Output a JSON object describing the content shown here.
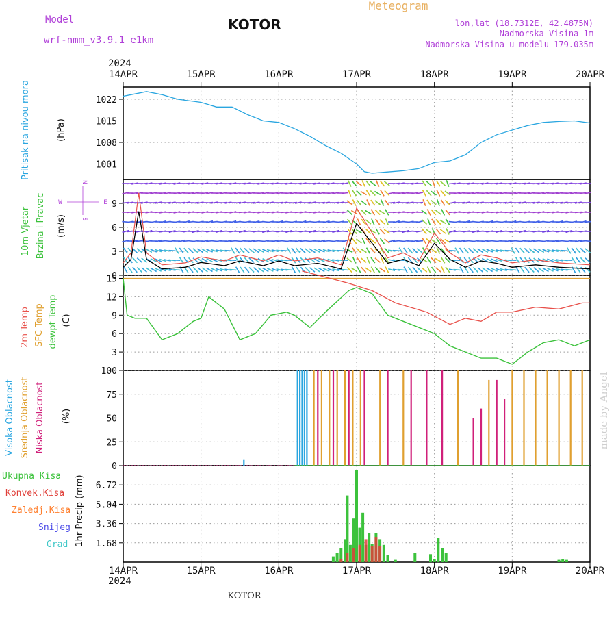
{
  "header": {
    "model_label": "Model",
    "model_name": "wrf-nmm_v3.9.1  e1km",
    "station": "KOTOR",
    "product": "Meteogram",
    "lonlat": "lon,lat (18.7312E, 42.4875N)",
    "elevation": "Nadmorska Visina 1m",
    "model_elevation": "Nadmorska Visina u modelu 179.035m",
    "year": "2024",
    "footer_station": "KOTOR",
    "credit": "made by Angel"
  },
  "colors": {
    "pressure": "#2aa6e0",
    "temp2m": "#e8504a",
    "sfc_temp": "#e0a030",
    "dewpoint": "#3cc23c",
    "label_green": "#3cc23c",
    "label_purple": "#b040d8",
    "high_cloud": "#2aa6e0",
    "mid_cloud": "#e0a030",
    "low_cloud": "#d0207a",
    "total_precip": "#3cc23c",
    "conv_precip": "#e0403a",
    "frozen_precip": "#ff8030",
    "snow": "#5050e8",
    "grad": "#40c8c8"
  },
  "chart_data": [
    {
      "type": "line",
      "title": "",
      "ylabel": [
        "Pritisak na nivou mora",
        "(hPa)"
      ],
      "x_labels": [
        "14APR",
        "15APR",
        "16APR",
        "17APR",
        "18APR",
        "19APR",
        "20APR"
      ],
      "x_unit": "day_index (0=14APR 00, 6=20APR 00)",
      "yticks": [
        1001,
        1008,
        1015,
        1022
      ],
      "ylim": [
        996,
        1026
      ],
      "series": [
        {
          "name": "Pritisak",
          "x": [
            0,
            0.1,
            0.3,
            0.5,
            0.7,
            1.0,
            1.2,
            1.4,
            1.6,
            1.8,
            2.0,
            2.2,
            2.4,
            2.6,
            2.8,
            3.0,
            3.1,
            3.2,
            3.4,
            3.6,
            3.8,
            4.0,
            4.2,
            4.4,
            4.6,
            4.8,
            5.0,
            5.2,
            5.4,
            5.6,
            5.8,
            6.0
          ],
          "values": [
            1023,
            1023.5,
            1024.5,
            1023.5,
            1022,
            1021,
            1019.5,
            1019.5,
            1017,
            1015,
            1014.5,
            1012.5,
            1010,
            1007,
            1004.5,
            1001,
            998.5,
            998,
            998.4,
            998.8,
            999.5,
            1001.5,
            1002,
            1004,
            1008,
            1010.5,
            1012,
            1013.5,
            1014.5,
            1014.8,
            1015,
            1014.3
          ]
        }
      ]
    },
    {
      "type": "line",
      "title": "",
      "ylabel": [
        "10m Vjetar",
        "Brzina i Pravac",
        "(m/s)"
      ],
      "direction_legend": {
        "w": "W",
        "e": "E",
        "n": "N",
        "s": "S"
      },
      "yticks": [
        0,
        3,
        6,
        9
      ],
      "ylim": [
        0,
        12
      ],
      "series": [
        {
          "name": "Brzina",
          "x": [
            0,
            0.1,
            0.2,
            0.3,
            0.5,
            0.8,
            1.0,
            1.3,
            1.5,
            1.8,
            2.0,
            2.2,
            2.5,
            2.8,
            3.0,
            3.2,
            3.4,
            3.6,
            3.8,
            4.0,
            4.2,
            4.4,
            4.6,
            4.8,
            5.0,
            5.3,
            5.6,
            6.0
          ],
          "values": [
            1,
            2,
            8,
            2,
            0.8,
            1,
            1.6,
            1.2,
            1.8,
            1.2,
            1.8,
            1.2,
            1.5,
            0.8,
            6.5,
            4,
            1.5,
            2,
            1.2,
            4,
            2,
            1,
            1.8,
            1.5,
            1,
            1.3,
            1,
            0.8
          ]
        }
      ]
    },
    {
      "type": "line",
      "title": "",
      "ylabel": [
        "2m Temp",
        "SFC Temp",
        "dewpt Temp",
        "(C)"
      ],
      "yticks": [
        3,
        6,
        9,
        12,
        15
      ],
      "ylim": [
        0,
        15.5
      ],
      "series": [
        {
          "name": "2m Temp",
          "x": [
            2.3,
            2.6,
            2.9,
            3.2,
            3.5,
            3.9,
            4.2,
            4.4,
            4.6,
            4.8,
            5.0,
            5.3,
            5.6,
            5.9,
            6.0
          ],
          "values": [
            16.2,
            15.2,
            14.2,
            13,
            11,
            9.5,
            7.5,
            8.5,
            8,
            9.5,
            9.5,
            10.3,
            10,
            11,
            11
          ]
        },
        {
          "name": "SFC Temp",
          "x": [
            0,
            6
          ],
          "values": [
            15,
            15
          ]
        },
        {
          "name": "dewpt Temp",
          "x": [
            0,
            0.05,
            0.15,
            0.3,
            0.5,
            0.7,
            0.8,
            0.9,
            1.0,
            1.1,
            1.3,
            1.5,
            1.7,
            1.9,
            2.1,
            2.2,
            2.4,
            2.6,
            2.9,
            3.0,
            3.2,
            3.4,
            3.6,
            3.8,
            4.0,
            4.2,
            4.4,
            4.6,
            4.8,
            5.0,
            5.2,
            5.4,
            5.6,
            5.8,
            6.0
          ],
          "values": [
            15,
            9,
            8.5,
            8.5,
            5,
            6,
            7,
            8,
            8.5,
            12,
            10,
            5,
            6,
            9,
            9.5,
            9,
            7,
            9.5,
            13,
            13.5,
            12.5,
            9,
            8,
            7,
            6,
            4,
            3,
            2,
            2,
            1,
            3,
            4.5,
            5,
            4,
            5
          ]
        }
      ]
    },
    {
      "type": "bar",
      "title": "",
      "ylabel": [
        "Visoka Oblacnost",
        "Srednja Oblacnost",
        "Niska Oblacnost",
        "(%)"
      ],
      "yticks": [
        0,
        25,
        50,
        75,
        100
      ],
      "ylim": [
        0,
        100
      ],
      "series": [
        {
          "name": "Visoka Oblacnost",
          "x": [
            1.55,
            2.24,
            2.27,
            2.3,
            2.33,
            2.36
          ],
          "values": [
            6,
            100,
            100,
            100,
            100,
            100
          ]
        },
        {
          "name": "Srednja Oblacnost",
          "x": [
            2.45,
            2.55,
            2.65,
            2.75,
            2.85,
            2.95,
            3.05,
            3.3,
            3.6,
            4.3,
            4.5,
            4.7,
            5.0,
            5.15,
            5.3,
            5.45,
            5.6,
            5.75,
            5.9
          ],
          "values": [
            100,
            100,
            100,
            100,
            100,
            100,
            100,
            100,
            100,
            100,
            50,
            90,
            100,
            100,
            100,
            100,
            100,
            100,
            100
          ]
        },
        {
          "name": "Niska Oblacnost",
          "x": [
            2.5,
            2.7,
            2.9,
            3.1,
            3.4,
            3.7,
            3.9,
            4.1,
            4.5,
            4.6,
            4.8,
            4.9
          ],
          "values": [
            100,
            100,
            100,
            100,
            100,
            100,
            100,
            100,
            50,
            60,
            90,
            70
          ]
        }
      ]
    },
    {
      "type": "bar",
      "title": "",
      "ylabel": [
        "1hr Precip (mm)"
      ],
      "legend": [
        "Ukupna Kisa",
        "Konvek.Kisa",
        "Zaledj.Kisa",
        "Snijeg",
        "Grad"
      ],
      "yticks": [
        1.68,
        3.36,
        5.04,
        6.72
      ],
      "ylim": [
        0,
        8.4
      ],
      "series": [
        {
          "name": "Ukupna Kisa",
          "x": [
            2.7,
            2.75,
            2.8,
            2.85,
            2.88,
            2.92,
            2.96,
            3.0,
            3.04,
            3.08,
            3.12,
            3.16,
            3.2,
            3.25,
            3.3,
            3.35,
            3.4,
            3.5,
            3.75,
            3.95,
            4.0,
            4.05,
            4.1,
            4.15,
            5.6,
            5.65,
            5.7
          ],
          "values": [
            0.5,
            0.8,
            1.2,
            2,
            5.8,
            1.5,
            3.8,
            8,
            3,
            4.3,
            1.5,
            2.5,
            1.6,
            2.5,
            2,
            1.5,
            0.6,
            0.2,
            0.8,
            0.7,
            0.3,
            2.1,
            1.2,
            0.8,
            0.2,
            0.3,
            0.2
          ]
        },
        {
          "name": "Konvek.Kisa",
          "x": [
            2.8,
            2.88,
            2.96,
            3.04,
            3.12,
            3.2,
            3.25,
            3.3
          ],
          "values": [
            0.3,
            0.8,
            1.2,
            1.5,
            2,
            1.4,
            2.2,
            1.4
          ]
        }
      ]
    }
  ]
}
